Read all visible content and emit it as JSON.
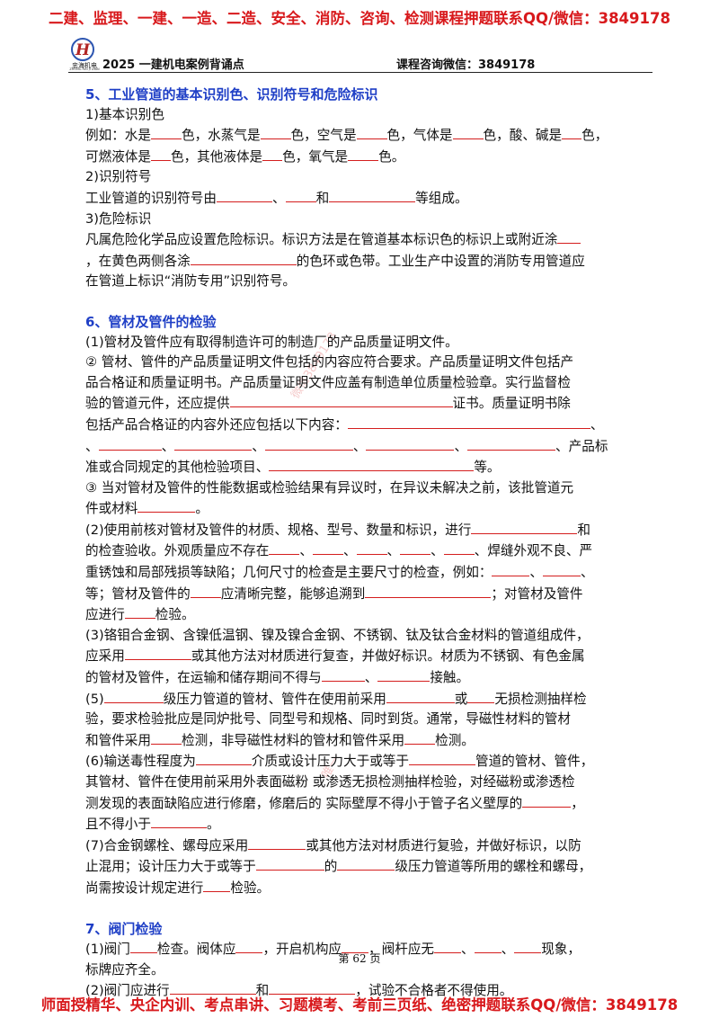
{
  "banners": {
    "top": "二建、监理、一建、一造、二造、安全、消防、咨询、检测课程押题联系QQ/微信：3849178",
    "bottom": "师面授精华、央企内训、考点串讲、习题模考、考前三页纸、绝密押题联系QQ/微信：3849178"
  },
  "header": {
    "logo_text": "忠海机电",
    "logo_sub": "ZHONG HAI JI DIAN",
    "title": "2025 一建机电案例背诵点",
    "contact": "课程咨询微信：3849178"
  },
  "watermarks": [
    "微信3849178",
    "唯一"
  ],
  "sections": {
    "s5": {
      "title": "5、工业管道的基本识别色、识别符号和危险标识",
      "sub1": "1)基本识别色",
      "l1": [
        "例如：水是",
        "色，水蒸气是",
        "色，空气是",
        "色，气体是",
        "色，酸、碱是",
        "色，"
      ],
      "l2": [
        "可燃液体是",
        "色，其他液体是",
        "色，氧气是",
        "色。"
      ],
      "sub2": "2)识别符号",
      "l3": [
        "工业管道的识别符号由",
        "、",
        "和",
        "等组成。"
      ],
      "sub3": "3)危险标识",
      "l4": "凡属危险化学品应设置危险标识。标识方法是在管道基本标识色的标识上或附近涂",
      "l5": [
        "，在黄色两侧各涂",
        "的色环或色带。工业生产中设置的消防专用管道应"
      ],
      "l6": "在管道上标识“消防专用”识别符号。"
    },
    "s6": {
      "title": "6、管材及管件的检验",
      "p1": "(1)管材及管件应有取得制造许可的制造厂的产品质量证明文件。",
      "p2a": "②  管材、管件的产品质量证明文件包括的内容应符合要求。产品质量证明文件包括产",
      "p2b": "品合格证和质量证明书。产品质量证明文件应盖有制造单位质量检验章。实行监督检",
      "p2c": [
        "验的管道元件，还应提供",
        "证书。质量证明书除"
      ],
      "p2d": [
        "包括产品合格证的内容外还应包括以下内容：",
        "、"
      ],
      "p2e": [
        "、",
        "、",
        "、",
        "、",
        "、",
        "、产品标"
      ],
      "p2f": [
        "准或合同规定的其他检验项目、",
        "等。"
      ],
      "p3a": "③  当对管材及管件的性能数据或检验结果有异议时，在异议未解决之前，该批管道元",
      "p3b": [
        "件或材料",
        "。"
      ],
      "p4a": [
        "(2)使用前核对管材及管件的材质、规格、型号、数量和标识，进行",
        "和"
      ],
      "p4b": [
        "的检查验收。外观质量应不存在",
        "、",
        "、",
        "、",
        "、",
        "、焊缝外观不良、严"
      ],
      "p4c": [
        "重锈蚀和局部残损等缺陷；几何尺寸的检查是主要尺寸的检查，例如：",
        "、",
        "、"
      ],
      "p4d": [
        "等；管材及管件的",
        "应清晰完整，能够追溯到",
        "；对管材及管件"
      ],
      "p4e": [
        "应进行",
        "检验。"
      ],
      "p5a": "(3)铬钼合金钢、含镍低温钢、镍及镍合金钢、不锈钢、钛及钛合金材料的管道组成件，",
      "p5b": [
        "应采用",
        "或其他方法对材质进行复查，并做好标识。材质为不锈钢、有色金属"
      ],
      "p5c": [
        "的管材及管件，在运输和储存期间不得与",
        "、",
        "接触。"
      ],
      "p6a": [
        "(5)",
        "级压力管道的管材、管件在使用前采用",
        "或",
        "无损检测抽样检"
      ],
      "p6b": "验，要求检验批应是同炉批号、同型号和规格、同时到货。通常，导磁性材料的管材",
      "p6c": [
        "和管件采用",
        "检测，非导磁性材料的管材和管件采用",
        "检测。"
      ],
      "p7a": [
        "(6)输送毒性程度为",
        "介质或设计压力大于或等于",
        "管道的管材、管件，"
      ],
      "p7b": "其管材、管件在使用前采用外表面磁粉 或渗透无损检测抽样检验，对经磁粉或渗透检",
      "p7c": [
        "测发现的表面缺陷应进行修磨，修磨后的 实际壁厚不得小于管子名义壁厚的",
        "，"
      ],
      "p7d": [
        "且不得小于",
        "。"
      ],
      "p8a": [
        "(7)合金钢螺栓、螺母应采用",
        "或其他方法对材质进行复验，并做好标识，以防"
      ],
      "p8b": [
        "止混用；设计压力大于或等于",
        "的",
        "级压力管道等所用的螺栓和螺母，"
      ],
      "p8c": [
        "尚需按设计规定进行",
        "检验。"
      ]
    },
    "s7": {
      "title": "7、阀门检验",
      "p1a": [
        "(1)阀门",
        "检查。阀体应",
        "，开启机构应",
        "，阀杆应无",
        "、",
        "、",
        "现象，"
      ],
      "p1b": "标牌应齐全。",
      "p2": [
        "(2)阀门应进行",
        "和",
        "，试验不合格者不得使用。"
      ]
    }
  },
  "footer": {
    "page": "第 62 页"
  }
}
